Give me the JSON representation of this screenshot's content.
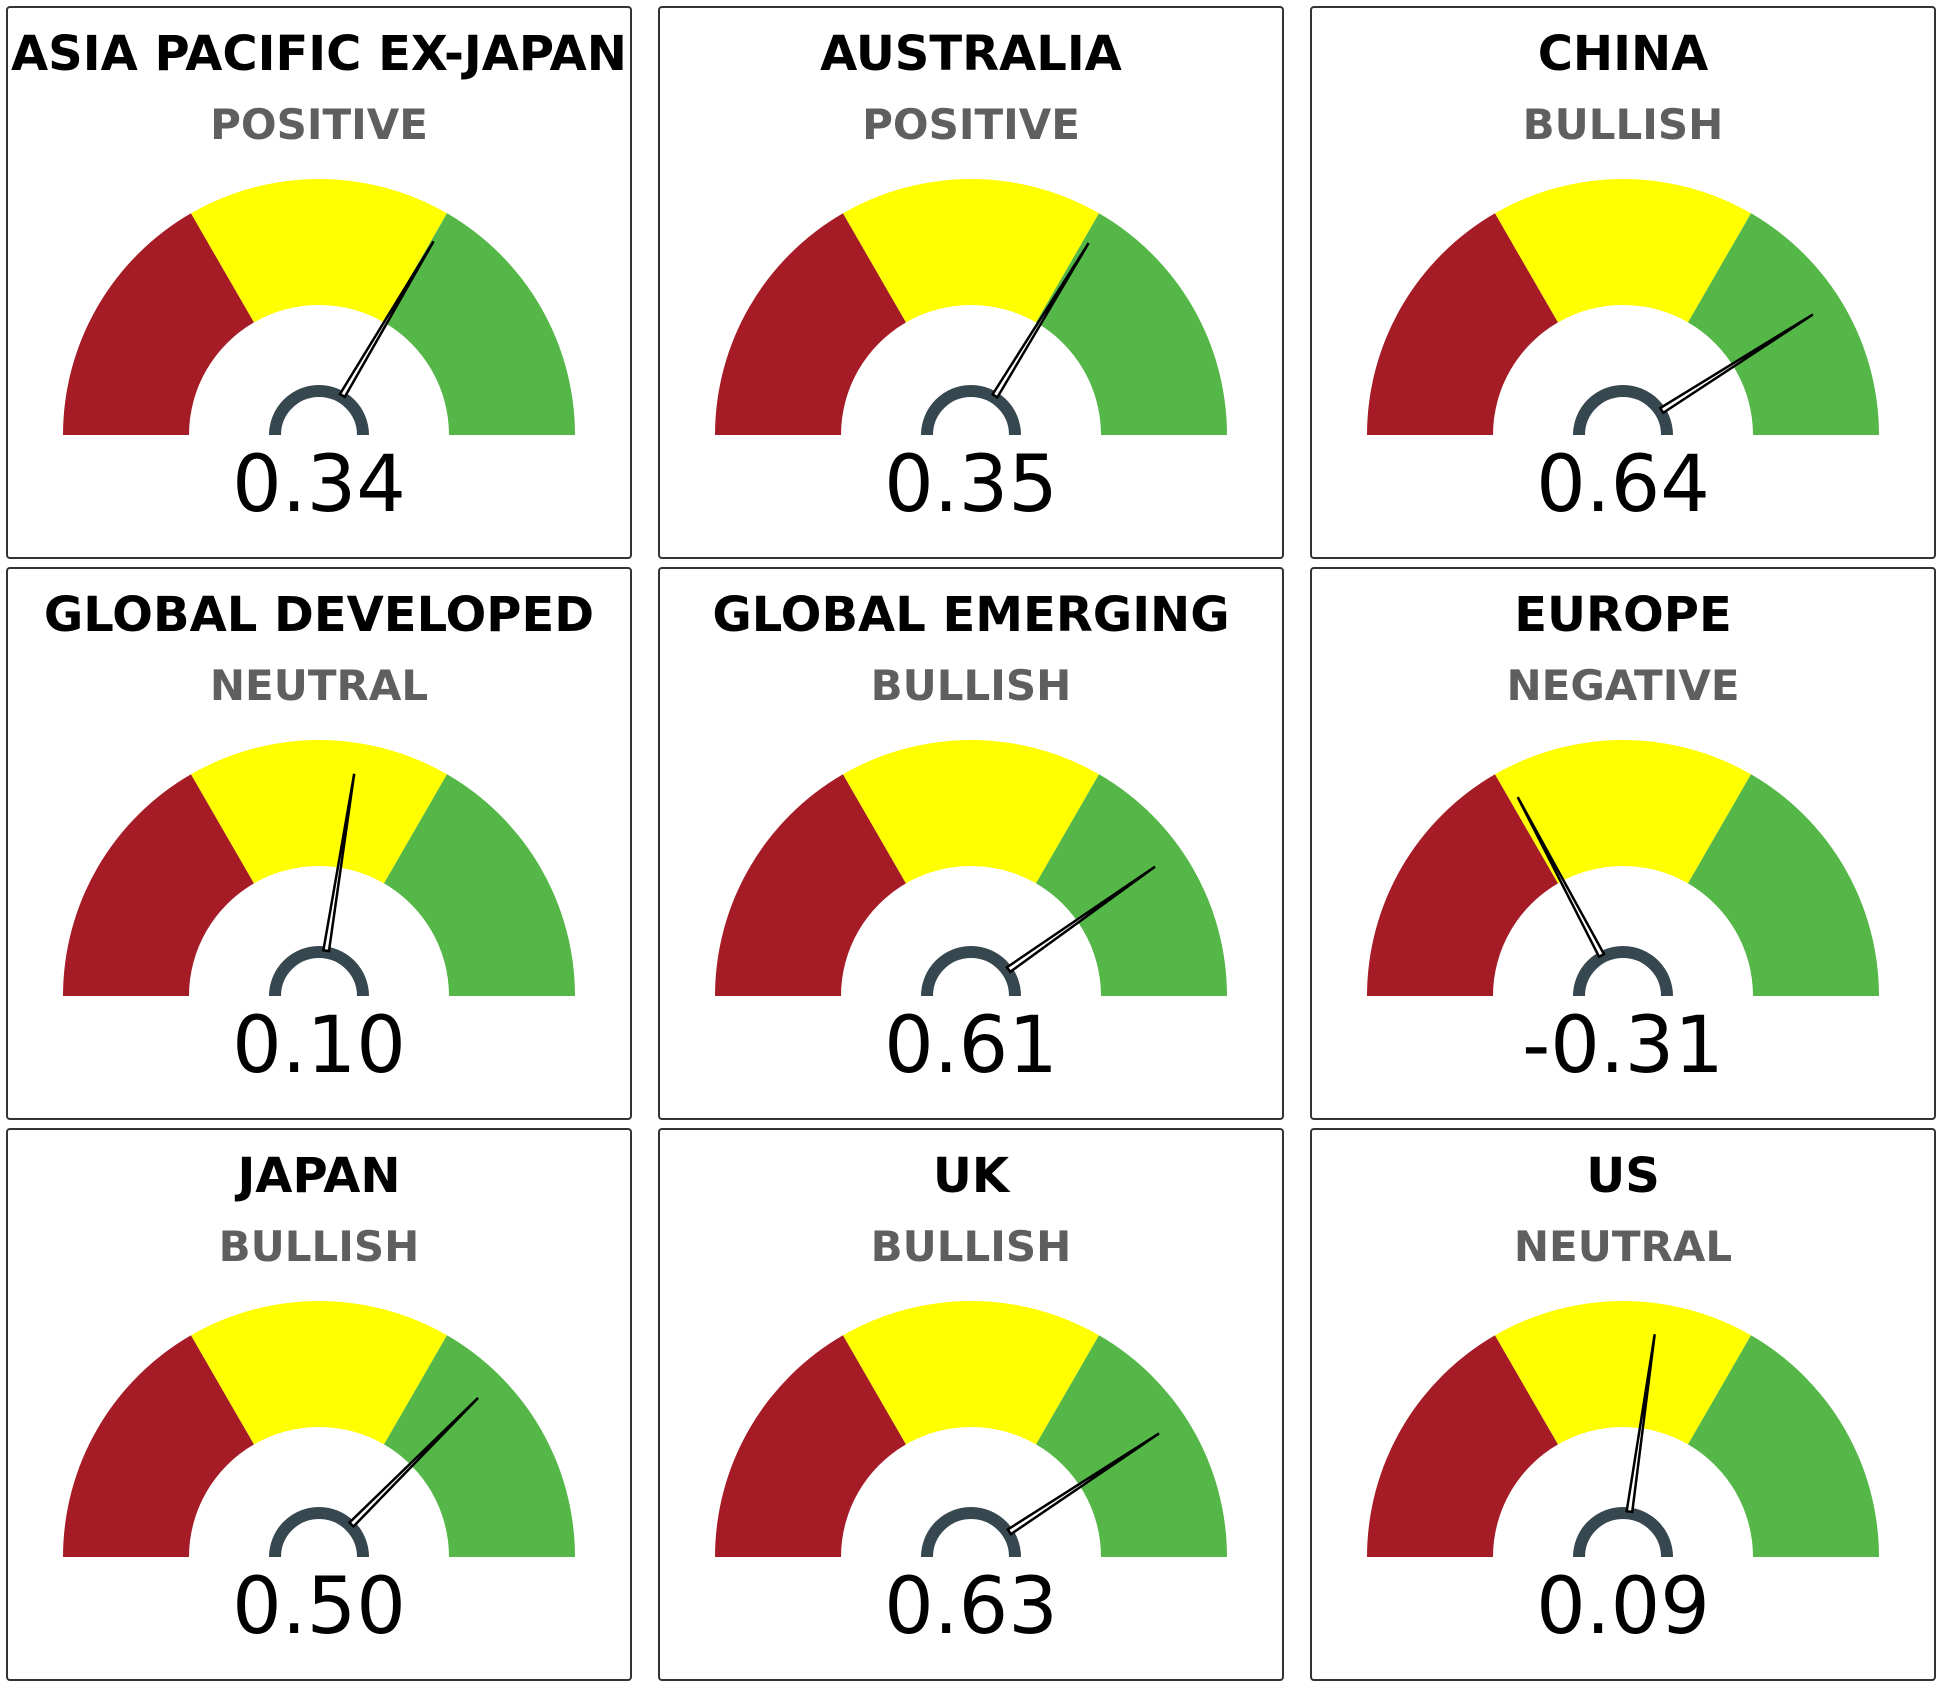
{
  "colors": {
    "negative_band": "#A51C27",
    "neutral_band": "#FFFF00",
    "positive_band": "#55B748",
    "needle": "#000000",
    "hub": "#37474F"
  },
  "gauge_range": [
    -1,
    1
  ],
  "gauges": [
    {
      "title": "ASIA PACIFIC EX-JAPAN",
      "sentiment": "POSITIVE",
      "value_label": "0.34",
      "value": 0.34
    },
    {
      "title": "AUSTRALIA",
      "sentiment": "POSITIVE",
      "value_label": "0.35",
      "value": 0.35
    },
    {
      "title": "CHINA",
      "sentiment": "BULLISH",
      "value_label": "0.64",
      "value": 0.64
    },
    {
      "title": "GLOBAL DEVELOPED",
      "sentiment": "NEUTRAL",
      "value_label": "0.10",
      "value": 0.1
    },
    {
      "title": "GLOBAL EMERGING",
      "sentiment": "BULLISH",
      "value_label": "0.61",
      "value": 0.61
    },
    {
      "title": "EUROPE",
      "sentiment": "NEGATIVE",
      "value_label": "-0.31",
      "value": -0.31
    },
    {
      "title": "JAPAN",
      "sentiment": "BULLISH",
      "value_label": "0.50",
      "value": 0.5
    },
    {
      "title": "UK",
      "sentiment": "BULLISH",
      "value_label": "0.63",
      "value": 0.63
    },
    {
      "title": "US",
      "sentiment": "NEUTRAL",
      "value_label": "0.09",
      "value": 0.09
    }
  ]
}
